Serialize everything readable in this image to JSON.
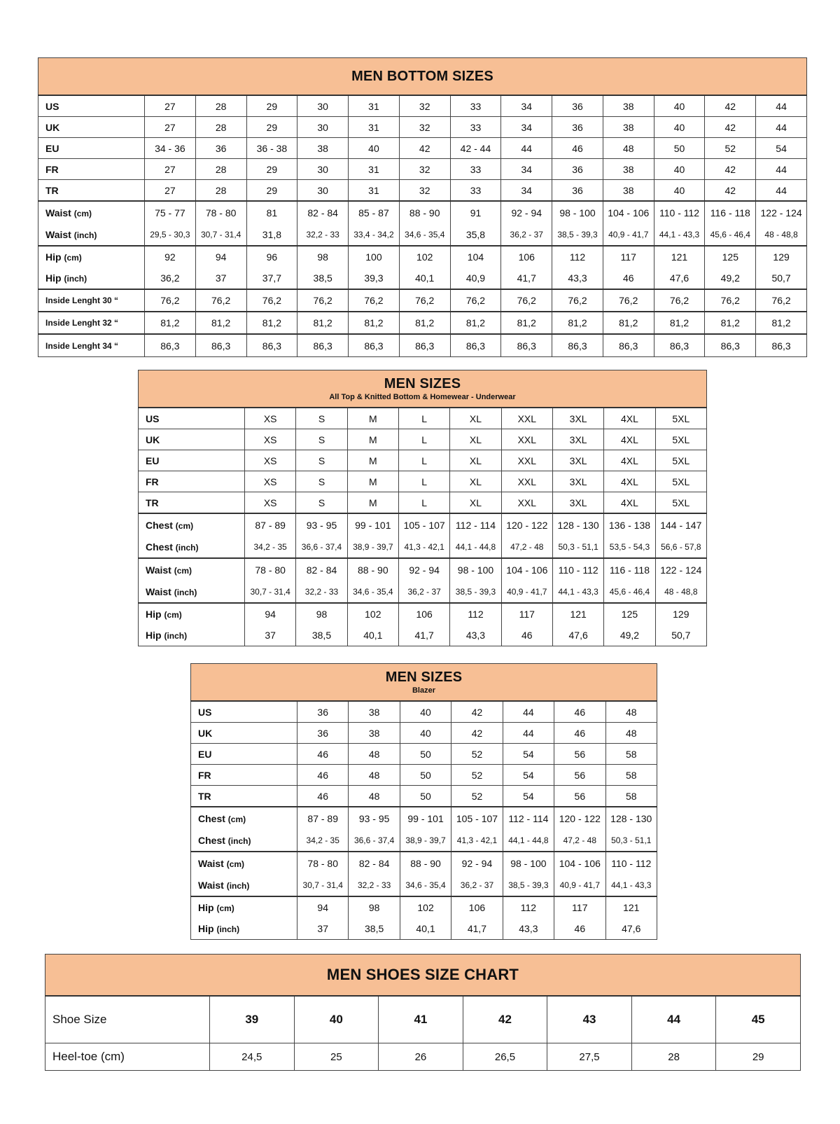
{
  "colors": {
    "header_fill": "#f7bf95",
    "border": "#444444"
  },
  "tables": [
    {
      "title": "MEN BOTTOM SIZES",
      "subtitle": "",
      "rows": [
        {
          "label": "US",
          "unit": "",
          "values": [
            "27",
            "28",
            "29",
            "30",
            "31",
            "32",
            "33",
            "34",
            "36",
            "38",
            "40",
            "42",
            "44"
          ]
        },
        {
          "label": "UK",
          "unit": "",
          "values": [
            "27",
            "28",
            "29",
            "30",
            "31",
            "32",
            "33",
            "34",
            "36",
            "38",
            "40",
            "42",
            "44"
          ]
        },
        {
          "label": "EU",
          "unit": "",
          "values": [
            "34 - 36",
            "36",
            "36 - 38",
            "38",
            "40",
            "42",
            "42 - 44",
            "44",
            "46",
            "48",
            "50",
            "52",
            "54"
          ]
        },
        {
          "label": "FR",
          "unit": "",
          "values": [
            "27",
            "28",
            "29",
            "30",
            "31",
            "32",
            "33",
            "34",
            "36",
            "38",
            "40",
            "42",
            "44"
          ]
        },
        {
          "label": "TR",
          "unit": "",
          "values": [
            "27",
            "28",
            "29",
            "30",
            "31",
            "32",
            "33",
            "34",
            "36",
            "38",
            "40",
            "42",
            "44"
          ]
        },
        {
          "label": "Waist",
          "unit": "(cm)",
          "values": [
            "75 - 77",
            "78 - 80",
            "81",
            "82 - 84",
            "85 - 87",
            "88 - 90",
            "91",
            "92 - 94",
            "98 - 100",
            "104 - 106",
            "110 - 112",
            "116 - 118",
            "122 - 124"
          ]
        },
        {
          "label": "Waist",
          "unit": "(inch)",
          "values": [
            "29,5 - 30,3",
            "30,7 - 31,4",
            "31,8",
            "32,2 - 33",
            "33,4 - 34,2",
            "34,6 - 35,4",
            "35,8",
            "36,2 - 37",
            "38,5 - 39,3",
            "40,9 - 41,7",
            "44,1 - 43,3",
            "45,6 - 46,4",
            "48 - 48,8"
          ]
        },
        {
          "label": "Hip",
          "unit": "(cm)",
          "values": [
            "92",
            "94",
            "96",
            "98",
            "100",
            "102",
            "104",
            "106",
            "112",
            "117",
            "121",
            "125",
            "129"
          ]
        },
        {
          "label": "Hip",
          "unit": "(inch)",
          "values": [
            "36,2",
            "37",
            "37,7",
            "38,5",
            "39,3",
            "40,1",
            "40,9",
            "41,7",
            "43,3",
            "46",
            "47,6",
            "49,2",
            "50,7"
          ]
        },
        {
          "label": "Inside Lenght 30 “",
          "unit": "",
          "values": [
            "76,2",
            "76,2",
            "76,2",
            "76,2",
            "76,2",
            "76,2",
            "76,2",
            "76,2",
            "76,2",
            "76,2",
            "76,2",
            "76,2",
            "76,2"
          ]
        },
        {
          "label": "Inside Lenght 32 “",
          "unit": "",
          "values": [
            "81,2",
            "81,2",
            "81,2",
            "81,2",
            "81,2",
            "81,2",
            "81,2",
            "81,2",
            "81,2",
            "81,2",
            "81,2",
            "81,2",
            "81,2"
          ]
        },
        {
          "label": "Inside Lenght 34 “",
          "unit": "",
          "values": [
            "86,3",
            "86,3",
            "86,3",
            "86,3",
            "86,3",
            "86,3",
            "86,3",
            "86,3",
            "86,3",
            "86,3",
            "86,3",
            "86,3",
            "86,3"
          ]
        }
      ]
    },
    {
      "title": "MEN SIZES",
      "subtitle": "All Top & Knitted Bottom & Homewear - Underwear",
      "rows": [
        {
          "label": "US",
          "unit": "",
          "values": [
            "XS",
            "S",
            "M",
            "L",
            "XL",
            "XXL",
            "3XL",
            "4XL",
            "5XL"
          ]
        },
        {
          "label": "UK",
          "unit": "",
          "values": [
            "XS",
            "S",
            "M",
            "L",
            "XL",
            "XXL",
            "3XL",
            "4XL",
            "5XL"
          ]
        },
        {
          "label": "EU",
          "unit": "",
          "values": [
            "XS",
            "S",
            "M",
            "L",
            "XL",
            "XXL",
            "3XL",
            "4XL",
            "5XL"
          ]
        },
        {
          "label": "FR",
          "unit": "",
          "values": [
            "XS",
            "S",
            "M",
            "L",
            "XL",
            "XXL",
            "3XL",
            "4XL",
            "5XL"
          ]
        },
        {
          "label": "TR",
          "unit": "",
          "values": [
            "XS",
            "S",
            "M",
            "L",
            "XL",
            "XXL",
            "3XL",
            "4XL",
            "5XL"
          ]
        },
        {
          "label": "Chest",
          "unit": "(cm)",
          "values": [
            "87 - 89",
            "93 - 95",
            "99 - 101",
            "105 - 107",
            "112 - 114",
            "120 - 122",
            "128 - 130",
            "136 - 138",
            "144 - 147"
          ]
        },
        {
          "label": "Chest",
          "unit": "(inch)",
          "values": [
            "34,2 - 35",
            "36,6 - 37,4",
            "38,9 - 39,7",
            "41,3 - 42,1",
            "44,1 - 44,8",
            "47,2 - 48",
            "50,3 - 51,1",
            "53,5 - 54,3",
            "56,6 - 57,8"
          ]
        },
        {
          "label": "Waist",
          "unit": "(cm)",
          "values": [
            "78 - 80",
            "82 - 84",
            "88 - 90",
            "92 - 94",
            "98 - 100",
            "104 - 106",
            "110 - 112",
            "116 - 118",
            "122 - 124"
          ]
        },
        {
          "label": "Waist",
          "unit": "(inch)",
          "values": [
            "30,7 - 31,4",
            "32,2 - 33",
            "34,6 - 35,4",
            "36,2 - 37",
            "38,5 - 39,3",
            "40,9 - 41,7",
            "44,1 - 43,3",
            "45,6 - 46,4",
            "48 - 48,8"
          ]
        },
        {
          "label": "Hip",
          "unit": "(cm)",
          "values": [
            "94",
            "98",
            "102",
            "106",
            "112",
            "117",
            "121",
            "125",
            "129"
          ]
        },
        {
          "label": "Hip",
          "unit": "(inch)",
          "values": [
            "37",
            "38,5",
            "40,1",
            "41,7",
            "43,3",
            "46",
            "47,6",
            "49,2",
            "50,7"
          ]
        }
      ]
    },
    {
      "title": "MEN SIZES",
      "subtitle": "Blazer",
      "rows": [
        {
          "label": "US",
          "unit": "",
          "values": [
            "36",
            "38",
            "40",
            "42",
            "44",
            "46",
            "48"
          ]
        },
        {
          "label": "UK",
          "unit": "",
          "values": [
            "36",
            "38",
            "40",
            "42",
            "44",
            "46",
            "48"
          ]
        },
        {
          "label": "EU",
          "unit": "",
          "values": [
            "46",
            "48",
            "50",
            "52",
            "54",
            "56",
            "58"
          ]
        },
        {
          "label": "FR",
          "unit": "",
          "values": [
            "46",
            "48",
            "50",
            "52",
            "54",
            "56",
            "58"
          ]
        },
        {
          "label": "TR",
          "unit": "",
          "values": [
            "46",
            "48",
            "50",
            "52",
            "54",
            "56",
            "58"
          ]
        },
        {
          "label": "Chest",
          "unit": "(cm)",
          "values": [
            "87 - 89",
            "93 - 95",
            "99 - 101",
            "105 - 107",
            "112 - 114",
            "120 - 122",
            "128 - 130"
          ]
        },
        {
          "label": "Chest",
          "unit": "(inch)",
          "values": [
            "34,2 - 35",
            "36,6 - 37,4",
            "38,9 - 39,7",
            "41,3 - 42,1",
            "44,1 - 44,8",
            "47,2 - 48",
            "50,3 - 51,1"
          ]
        },
        {
          "label": "Waist",
          "unit": "(cm)",
          "values": [
            "78 - 80",
            "82 - 84",
            "88 - 90",
            "92 - 94",
            "98 - 100",
            "104 - 106",
            "110 - 112"
          ]
        },
        {
          "label": "Waist",
          "unit": "(inch)",
          "values": [
            "30,7 - 31,4",
            "32,2 - 33",
            "34,6 - 35,4",
            "36,2 - 37",
            "38,5 - 39,3",
            "40,9 - 41,7",
            "44,1 - 43,3"
          ]
        },
        {
          "label": "Hip",
          "unit": "(cm)",
          "values": [
            "94",
            "98",
            "102",
            "106",
            "112",
            "117",
            "121"
          ]
        },
        {
          "label": "Hip",
          "unit": "(inch)",
          "values": [
            "37",
            "38,5",
            "40,1",
            "41,7",
            "43,3",
            "46",
            "47,6"
          ]
        }
      ]
    },
    {
      "title": "MEN SHOES SIZE CHART",
      "subtitle": "",
      "rows": [
        {
          "label": "Shoe Size",
          "unit": "",
          "values": [
            "39",
            "40",
            "41",
            "42",
            "43",
            "44",
            "45"
          ]
        },
        {
          "label": "Heel-toe (cm)",
          "unit": "",
          "values": [
            "24,5",
            "25",
            "26",
            "26,5",
            "27,5",
            "28",
            "29"
          ]
        }
      ]
    }
  ]
}
